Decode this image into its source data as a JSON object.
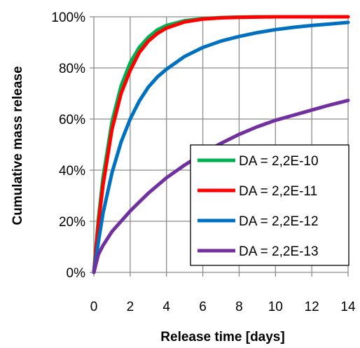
{
  "chart_data": {
    "type": "line",
    "title": "",
    "xlabel": "Release time [days]",
    "ylabel": "Cumulative  mass release",
    "xlim": [
      0,
      14
    ],
    "ylim": [
      0,
      100
    ],
    "x_ticks": [
      0,
      2,
      4,
      6,
      8,
      10,
      12,
      14
    ],
    "x_tick_labels": [
      "0",
      "2",
      "4",
      "6",
      "8",
      "10",
      "12",
      "14"
    ],
    "y_ticks": [
      0,
      20,
      40,
      60,
      80,
      100
    ],
    "y_tick_labels": [
      "0%",
      "20%",
      "40%",
      "60%",
      "80%",
      "100%"
    ],
    "grid": true,
    "legend_position": "bottom-right",
    "x": [
      0,
      0.25,
      0.5,
      1,
      1.5,
      2,
      2.5,
      3,
      3.5,
      4,
      5,
      6,
      7,
      8,
      9,
      10,
      11,
      12,
      13,
      14
    ],
    "series": [
      {
        "name": "DA = 2,2E-10",
        "color": "#00b050",
        "values": [
          0,
          21,
          37,
          59,
          73,
          82,
          88,
          92,
          94.9,
          96.6,
          98.5,
          99.3,
          99.7,
          99.9,
          100,
          100,
          100,
          100,
          100,
          100
        ]
      },
      {
        "name": "DA = 2,2E-11",
        "color": "#ff0000",
        "values": [
          0,
          19,
          34,
          56,
          70,
          79,
          86,
          90.5,
          93.5,
          95.6,
          98,
          99.1,
          99.6,
          99.8,
          99.9,
          100,
          100,
          100,
          100,
          100
        ]
      },
      {
        "name": "DA = 2,2E-12",
        "color": "#0070c0",
        "values": [
          0,
          12,
          23,
          39,
          51,
          60,
          67,
          72.5,
          76.5,
          79.5,
          84.5,
          88,
          90.5,
          92.3,
          93.8,
          95,
          95.9,
          96.6,
          97.2,
          97.8
        ]
      },
      {
        "name": "DA = 2,2E-13",
        "color": "#7030a0",
        "values": [
          0,
          7,
          10.5,
          16,
          20,
          24,
          27.5,
          31,
          34,
          37,
          42,
          46.5,
          50.5,
          54,
          57,
          59.5,
          61.5,
          63.5,
          65.5,
          67.3
        ]
      }
    ]
  }
}
